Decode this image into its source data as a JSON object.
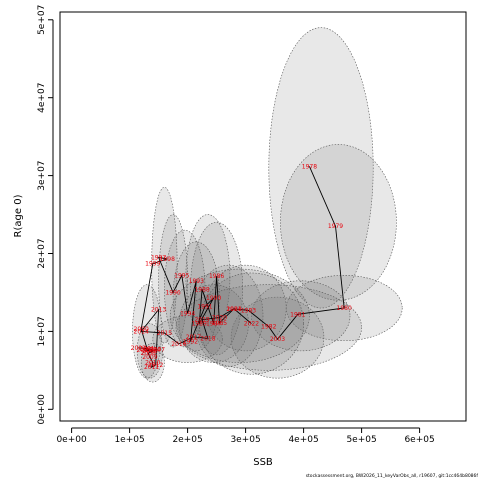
{
  "chart_data": {
    "type": "scatter",
    "xlabel": "SSB",
    "ylabel": "R(age 0)",
    "xlim": [
      -20000,
      680000
    ],
    "ylim": [
      -1500000,
      51000000
    ],
    "x_ticks": [
      {
        "value": 0,
        "label": "0e+00"
      },
      {
        "value": 100000,
        "label": "1e+05"
      },
      {
        "value": 200000,
        "label": "2e+05"
      },
      {
        "value": 300000,
        "label": "3e+05"
      },
      {
        "value": 400000,
        "label": "4e+05"
      },
      {
        "value": 500000,
        "label": "5e+05"
      },
      {
        "value": 600000,
        "label": "6e+05"
      }
    ],
    "y_ticks": [
      {
        "value": 0,
        "label": "0e+00"
      },
      {
        "value": 10000000,
        "label": "1e+07"
      },
      {
        "value": 20000000,
        "label": "2e+07"
      },
      {
        "value": 30000000,
        "label": "3e+07"
      },
      {
        "value": 40000000,
        "label": "4e+07"
      },
      {
        "value": 50000000,
        "label": "5e+07"
      }
    ],
    "points": [
      {
        "label": "1978",
        "x": 410000,
        "y": 31200000
      },
      {
        "label": "1979",
        "x": 455000,
        "y": 23500000
      },
      {
        "label": "1980",
        "x": 470000,
        "y": 13000000
      },
      {
        "label": "1981",
        "x": 390000,
        "y": 12200000
      },
      {
        "label": "2003",
        "x": 355000,
        "y": 9000000
      },
      {
        "label": "1982",
        "x": 340000,
        "y": 10600000
      },
      {
        "label": "1983",
        "x": 305000,
        "y": 12700000
      },
      {
        "label": "1984",
        "x": 280000,
        "y": 12900000
      },
      {
        "label": "1985",
        "x": 255000,
        "y": 11100000
      },
      {
        "label": "1986",
        "x": 250000,
        "y": 17100000
      },
      {
        "label": "1987",
        "x": 245000,
        "y": 11000000
      },
      {
        "label": "1988",
        "x": 225000,
        "y": 15400000
      },
      {
        "label": "1989",
        "x": 220000,
        "y": 11000000
      },
      {
        "label": "1990",
        "x": 245000,
        "y": 14300000
      },
      {
        "label": "1991",
        "x": 230000,
        "y": 13200000
      },
      {
        "label": "1992",
        "x": 205000,
        "y": 8700000
      },
      {
        "label": "1993",
        "x": 215000,
        "y": 16500000
      },
      {
        "label": "1994",
        "x": 200000,
        "y": 12300000
      },
      {
        "label": "1995",
        "x": 190000,
        "y": 17200000
      },
      {
        "label": "1996",
        "x": 175000,
        "y": 15000000
      },
      {
        "label": "1997",
        "x": 150000,
        "y": 19500000
      },
      {
        "label": "1998",
        "x": 165000,
        "y": 19300000
      },
      {
        "label": "1999",
        "x": 140000,
        "y": 18700000
      },
      {
        "label": "2000",
        "x": 120000,
        "y": 10300000
      },
      {
        "label": "2001",
        "x": 130000,
        "y": 7800000
      },
      {
        "label": "2002",
        "x": 115000,
        "y": 7900000
      },
      {
        "label": "2004",
        "x": 140000,
        "y": 7700000
      },
      {
        "label": "2005",
        "x": 125000,
        "y": 7600000
      },
      {
        "label": "2006",
        "x": 135000,
        "y": 7500000
      },
      {
        "label": "2007",
        "x": 148000,
        "y": 7700000
      },
      {
        "label": "2008",
        "x": 132000,
        "y": 7200000
      },
      {
        "label": "2009",
        "x": 135000,
        "y": 6700000
      },
      {
        "label": "2010",
        "x": 140000,
        "y": 6000000
      },
      {
        "label": "2011",
        "x": 138000,
        "y": 5400000
      },
      {
        "label": "2012",
        "x": 145000,
        "y": 5700000
      },
      {
        "label": "2013",
        "x": 150000,
        "y": 12800000
      },
      {
        "label": "2014",
        "x": 120000,
        "y": 10000000
      },
      {
        "label": "2015",
        "x": 160000,
        "y": 9800000
      },
      {
        "label": "2016",
        "x": 185000,
        "y": 8400000
      },
      {
        "label": "2017",
        "x": 210000,
        "y": 9300000
      },
      {
        "label": "2018",
        "x": 235000,
        "y": 9100000
      },
      {
        "label": "2019",
        "x": 225000,
        "y": 11500000
      },
      {
        "label": "2020",
        "x": 255000,
        "y": 11800000
      },
      {
        "label": "2021",
        "x": 280000,
        "y": 12900000
      },
      {
        "label": "2022",
        "x": 310000,
        "y": 11000000
      }
    ],
    "path_order": [
      "1978",
      "1979",
      "1980",
      "1981",
      "2003",
      "1982",
      "1983",
      "1984",
      "1985",
      "1986",
      "1987",
      "1988",
      "1989",
      "1990",
      "1991",
      "1992",
      "1993",
      "1994",
      "1995",
      "1996",
      "1997",
      "1998",
      "1999",
      "2000",
      "2001",
      "2002",
      "2004",
      "2005",
      "2006",
      "2007",
      "2008",
      "2009",
      "2010",
      "2011",
      "2012",
      "2013",
      "2014",
      "2015",
      "2016",
      "2017",
      "2018",
      "2019",
      "2020",
      "2021",
      "2022"
    ],
    "ellipses": [
      {
        "cx": 430000,
        "cy": 31000000,
        "rx": 90000,
        "ry": 18000000
      },
      {
        "cx": 460000,
        "cy": 24000000,
        "rx": 100000,
        "ry": 10000000
      },
      {
        "cx": 470000,
        "cy": 13000000,
        "rx": 100000,
        "ry": 4200000
      },
      {
        "cx": 395000,
        "cy": 12000000,
        "rx": 85000,
        "ry": 4500000
      },
      {
        "cx": 355000,
        "cy": 9200000,
        "rx": 80000,
        "ry": 5200000
      },
      {
        "cx": 300000,
        "cy": 13000000,
        "rx": 70000,
        "ry": 5500000
      },
      {
        "cx": 270000,
        "cy": 12000000,
        "rx": 60000,
        "ry": 6500000
      },
      {
        "cx": 250000,
        "cy": 15500000,
        "rx": 45000,
        "ry": 8500000
      },
      {
        "cx": 235000,
        "cy": 17000000,
        "rx": 38000,
        "ry": 8000000
      },
      {
        "cx": 215000,
        "cy": 14500000,
        "rx": 40000,
        "ry": 7000000
      },
      {
        "cx": 195000,
        "cy": 15500000,
        "rx": 35000,
        "ry": 7500000
      },
      {
        "cx": 175000,
        "cy": 16500000,
        "rx": 25000,
        "ry": 8500000
      },
      {
        "cx": 160000,
        "cy": 18500000,
        "rx": 22000,
        "ry": 10000000
      },
      {
        "cx": 130000,
        "cy": 10000000,
        "rx": 25000,
        "ry": 6000000
      },
      {
        "cx": 135000,
        "cy": 7500000,
        "rx": 22000,
        "ry": 3500000
      },
      {
        "cx": 140000,
        "cy": 6000000,
        "rx": 20000,
        "ry": 2500000
      },
      {
        "cx": 200000,
        "cy": 9000000,
        "rx": 60000,
        "ry": 3000000
      },
      {
        "cx": 245000,
        "cy": 11000000,
        "rx": 60000,
        "ry": 5000000
      },
      {
        "cx": 290000,
        "cy": 12000000,
        "rx": 120000,
        "ry": 6000000
      },
      {
        "cx": 340000,
        "cy": 10500000,
        "rx": 160000,
        "ry": 5500000
      },
      {
        "cx": 310000,
        "cy": 11000000,
        "rx": 90000,
        "ry": 6500000
      }
    ],
    "footer": "stockassessment.org, BW2026_11_keyVarObs_all, r19607, git:1cc464b8086f"
  }
}
